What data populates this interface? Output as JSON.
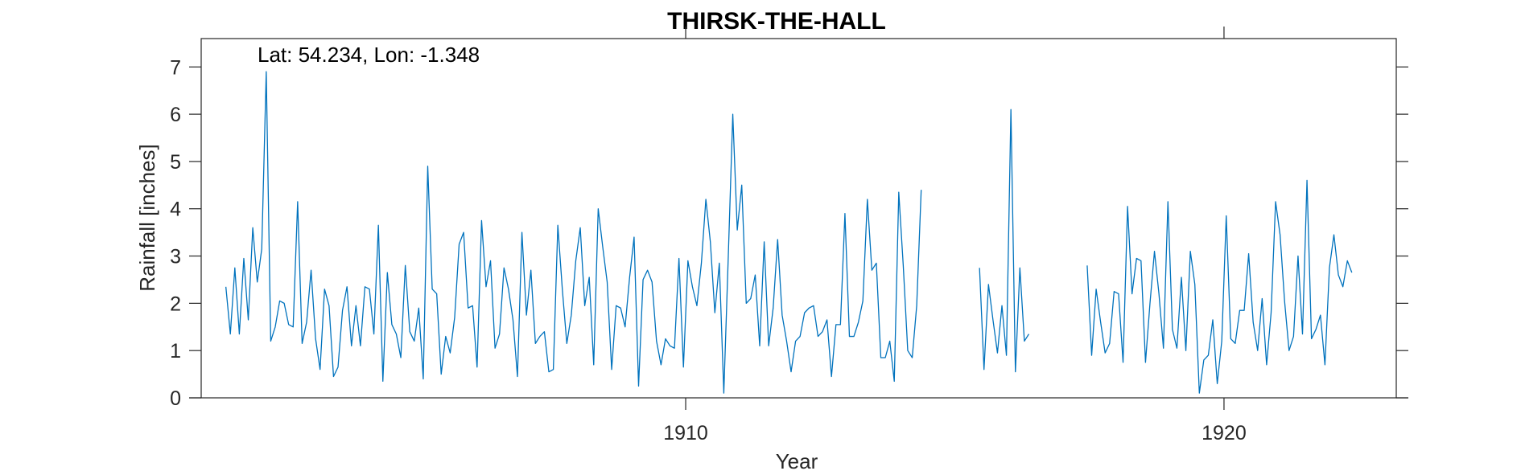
{
  "chart_data": {
    "type": "line",
    "title": "THIRSK-THE-HALL",
    "annotation": "Lat: 54.234, Lon: -1.348",
    "xlabel": "Year",
    "ylabel": "Rainfall [inches]",
    "xlim": [
      1901.0,
      1923.2
    ],
    "ylim": [
      0,
      7.6
    ],
    "x_ticks": [
      1910,
      1920
    ],
    "x_tick_labels": [
      "1910",
      "1920"
    ],
    "y_ticks": [
      0,
      1,
      2,
      3,
      4,
      5,
      6,
      7
    ],
    "y_tick_labels": [
      "0",
      "1",
      "2",
      "3",
      "4",
      "5",
      "6",
      "7"
    ],
    "grid": false,
    "line_color": "#0072BD",
    "start": {
      "year": 1901,
      "month": 6
    },
    "series": [
      {
        "name": "",
        "values": [
          2.35,
          1.35,
          2.75,
          1.35,
          2.95,
          1.65,
          3.6,
          2.45,
          3.15,
          6.9,
          1.2,
          1.5,
          2.05,
          2.0,
          1.55,
          1.5,
          4.15,
          1.15,
          1.6,
          2.7,
          1.25,
          0.6,
          2.3,
          1.95,
          0.45,
          0.65,
          1.85,
          2.35,
          1.1,
          1.95,
          1.1,
          2.35,
          2.3,
          1.35,
          3.65,
          0.35,
          2.65,
          1.55,
          1.35,
          0.85,
          2.8,
          1.4,
          1.2,
          1.9,
          0.4,
          4.9,
          2.3,
          2.2,
          0.5,
          1.3,
          0.95,
          1.7,
          3.25,
          3.5,
          1.9,
          1.95,
          0.65,
          3.75,
          2.35,
          2.9,
          1.05,
          1.35,
          2.75,
          2.3,
          1.65,
          0.45,
          3.5,
          1.75,
          2.7,
          1.15,
          1.3,
          1.4,
          0.55,
          0.6,
          3.65,
          2.3,
          1.15,
          1.75,
          2.9,
          3.6,
          1.95,
          2.55,
          0.7,
          4.0,
          3.2,
          2.45,
          0.6,
          1.95,
          1.9,
          1.5,
          2.55,
          3.4,
          0.25,
          2.5,
          2.7,
          2.45,
          1.2,
          0.7,
          1.25,
          1.1,
          1.05,
          2.95,
          0.65,
          2.9,
          2.35,
          1.95,
          2.85,
          4.2,
          3.3,
          1.8,
          2.85,
          0.1,
          3.0,
          6.0,
          3.55,
          4.5,
          2.0,
          2.1,
          2.6,
          1.1,
          3.3,
          1.1,
          1.9,
          3.35,
          1.75,
          1.2,
          0.55,
          1.2,
          1.3,
          1.8,
          1.9,
          1.95,
          1.3,
          1.4,
          1.65,
          0.45,
          1.55,
          1.55,
          3.9,
          1.3,
          1.3,
          1.6,
          2.05,
          4.2,
          2.7,
          2.85,
          0.85,
          0.85,
          1.2,
          0.35,
          4.35,
          2.8,
          1.0,
          0.85,
          1.95,
          4.4,
          null,
          null,
          null,
          null,
          null,
          null,
          null,
          null,
          null,
          null,
          null,
          null,
          2.75,
          0.6,
          2.4,
          1.65,
          0.95,
          1.95,
          0.9,
          6.1,
          0.55,
          2.75,
          1.2,
          1.35,
          null,
          null,
          null,
          null,
          null,
          null,
          null,
          null,
          null,
          null,
          null,
          null,
          2.8,
          0.9,
          2.3,
          1.6,
          0.95,
          1.15,
          2.25,
          2.2,
          0.75,
          4.05,
          2.2,
          2.95,
          2.9,
          0.75,
          2.0,
          3.1,
          2.2,
          1.05,
          4.15,
          1.45,
          1.05,
          2.55,
          1.0,
          3.1,
          2.4,
          0.1,
          0.8,
          0.9,
          1.65,
          0.3,
          1.2,
          3.85,
          1.25,
          1.15,
          1.85,
          1.85,
          3.05,
          1.6,
          1.0,
          2.1,
          0.7,
          1.8,
          4.15,
          3.45,
          2.05,
          1.0,
          1.3,
          3.0,
          1.35,
          4.6,
          1.25,
          1.45,
          1.75,
          0.7,
          2.75,
          3.45,
          2.6,
          2.35,
          2.9,
          2.65
        ]
      }
    ]
  }
}
